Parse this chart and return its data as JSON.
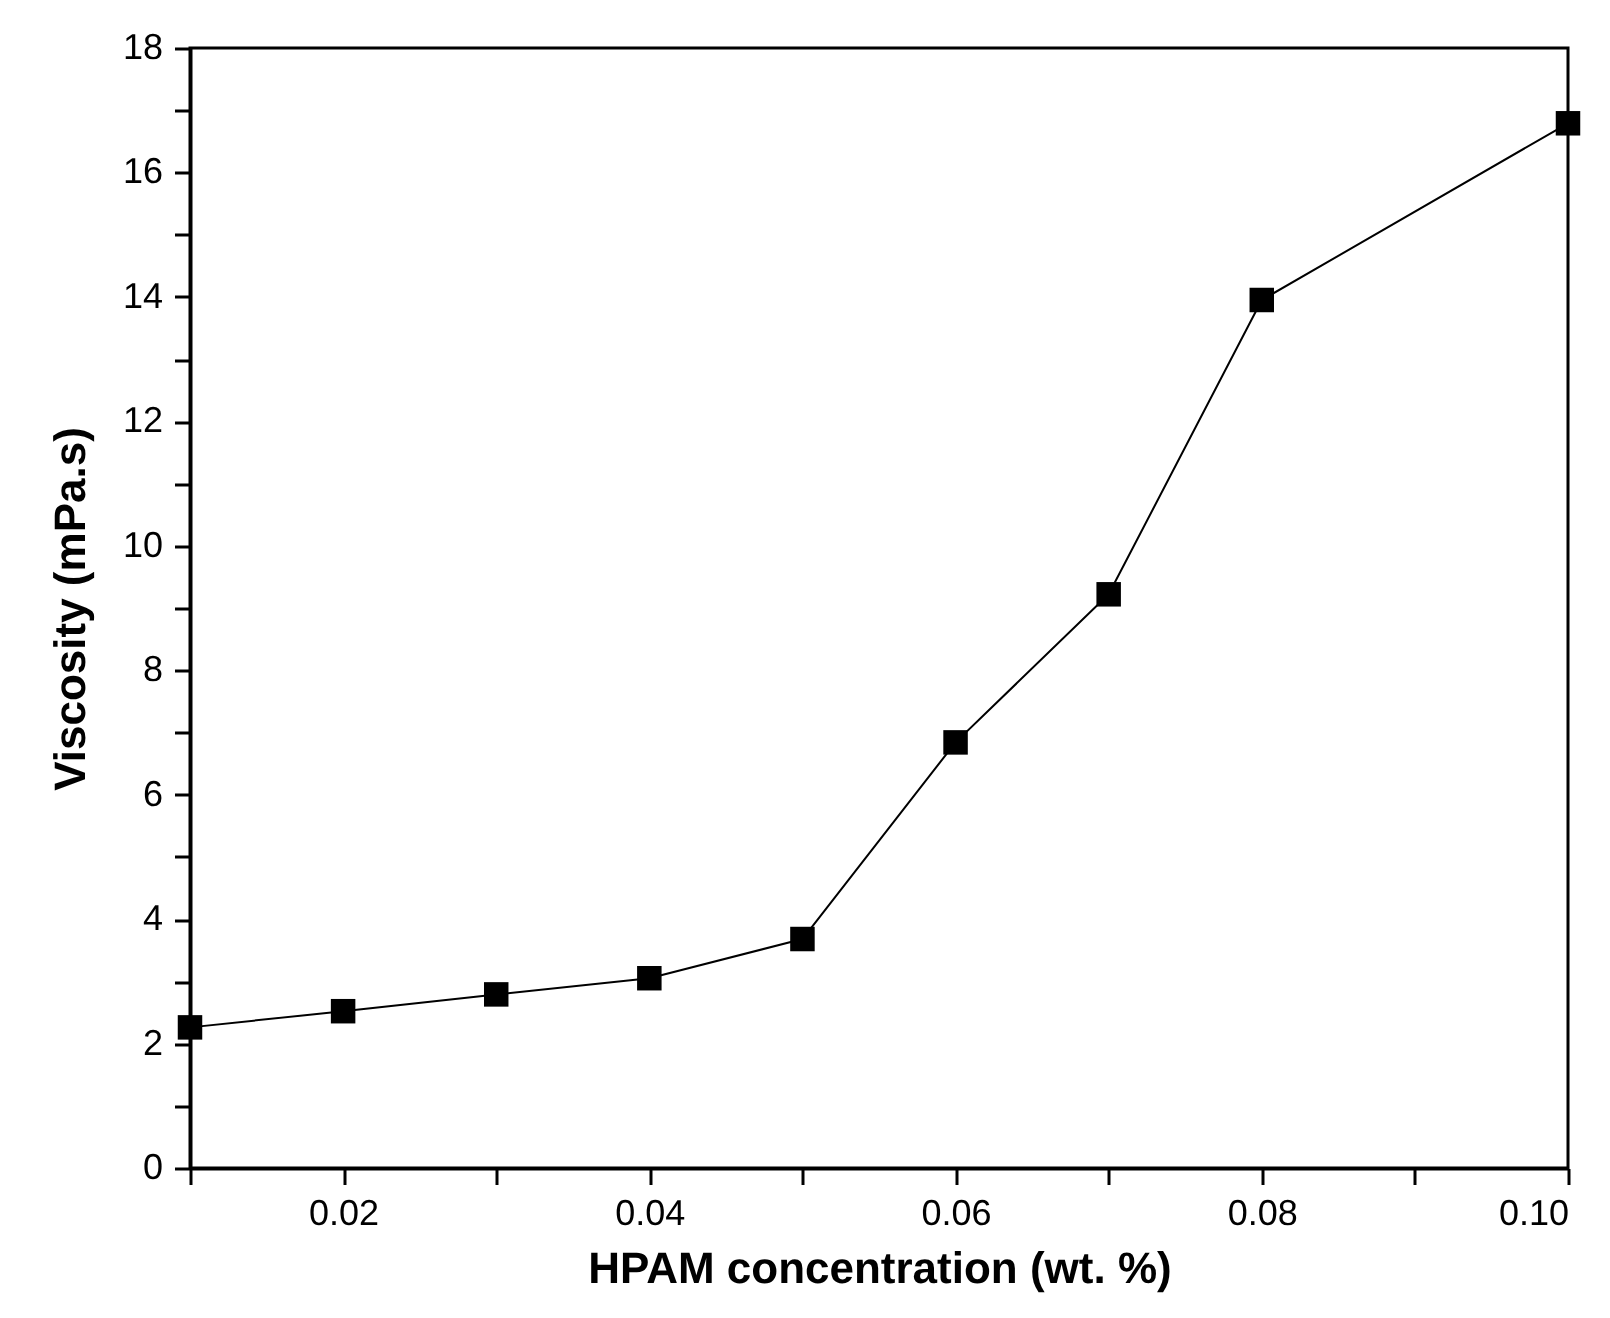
{
  "chart_data": {
    "type": "line",
    "xlabel": "HPAM concentration (wt. %)",
    "ylabel": "Viscosity (mPa.s)",
    "x": [
      0.01,
      0.02,
      0.03,
      0.04,
      0.05,
      0.06,
      0.07,
      0.08,
      0.1
    ],
    "series": [
      {
        "color": "#000000",
        "values": [
          2.26,
          2.52,
          2.79,
          3.05,
          3.68,
          6.84,
          9.22,
          13.95,
          16.79
        ]
      }
    ],
    "xlim": [
      0.01,
      0.1
    ],
    "ylim": [
      0,
      18
    ],
    "xticks": [
      {
        "value": 0.01,
        "label": null
      },
      0.02,
      {
        "value": 0.03,
        "label": null
      },
      0.04,
      {
        "value": 0.05,
        "label": null
      },
      0.06,
      {
        "value": 0.07,
        "label": null
      },
      0.08,
      {
        "value": 0.09,
        "label": null
      },
      {
        "value": 0.1,
        "label": "0.10"
      }
    ],
    "yticks": [
      0,
      {
        "value": 1,
        "label": null
      },
      2,
      {
        "value": 3,
        "label": null
      },
      4,
      {
        "value": 5,
        "label": null
      },
      6,
      {
        "value": 7,
        "label": null
      },
      8,
      {
        "value": 9,
        "label": null
      },
      10,
      {
        "value": 11,
        "label": null
      },
      12,
      {
        "value": 13,
        "label": null
      },
      14,
      {
        "value": 15,
        "label": null
      },
      16,
      {
        "value": 17,
        "label": null
      },
      18
    ],
    "marker": "square",
    "line_style": "solid",
    "grid": false
  }
}
